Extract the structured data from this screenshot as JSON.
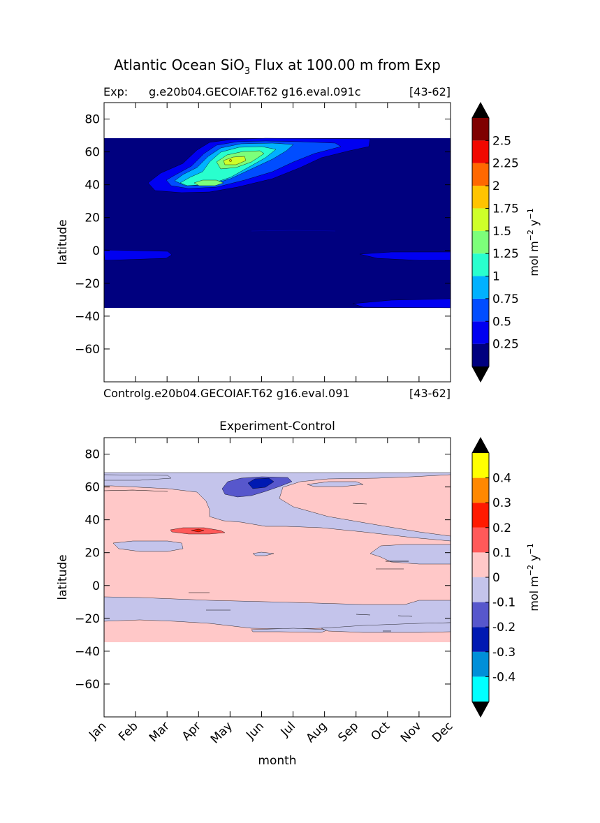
{
  "figure": {
    "title_main": "Atlantic Ocean SiO",
    "title_sub": "3",
    "title_rest": "Flux at 100.00 m from Exp"
  },
  "chart_data": [
    {
      "type": "heatmap",
      "title": "",
      "label_left": "Exp:",
      "label_center": "g.e20b04.GECOIAF.T62 g16.eval.091c",
      "label_right": "[43-62]",
      "label_bottom_left": "Controlg.e20b04.GECOIAF.T62 g16.eval.091",
      "label_bottom_right": "[43-62]",
      "xlabel": "",
      "ylabel": "latitude",
      "ylim": [
        -80,
        90
      ],
      "data_lat_range": [
        -34,
        69
      ],
      "yticks": [
        80,
        60,
        40,
        20,
        0,
        -20,
        -40,
        -60
      ],
      "ytick_labels": [
        "80",
        "60",
        "40",
        "20",
        "0",
        "−20",
        "−40",
        "−60"
      ],
      "colorbar": {
        "label_main": "mol m",
        "label_exp1": "−2",
        "label_mid": " y",
        "label_exp2": "−1",
        "tick_labels": [
          "0.25",
          "0.5",
          "0.75",
          "1",
          "1.25",
          "1.5",
          "1.75",
          "2",
          "2.25",
          "2.5"
        ],
        "colors": [
          "#00007f",
          "#0000f1",
          "#004dff",
          "#00b1ff",
          "#29ffce",
          "#7dff7a",
          "#ceff29",
          "#ffc400",
          "#ff6800",
          "#f10800",
          "#7f0000"
        ],
        "extend_color": "#000000"
      }
    },
    {
      "type": "heatmap",
      "title": "Experiment-Control",
      "xlabel": "month",
      "ylabel": "latitude",
      "ylim": [
        -80,
        90
      ],
      "data_lat_range": [
        -34,
        69
      ],
      "categories": [
        "Jan",
        "Feb",
        "Mar",
        "Apr",
        "May",
        "Jun",
        "Jul",
        "Aug",
        "Sep",
        "Oct",
        "Nov",
        "Dec"
      ],
      "yticks": [
        80,
        60,
        40,
        20,
        0,
        -20,
        -40,
        -60
      ],
      "ytick_labels": [
        "80",
        "60",
        "40",
        "20",
        "0",
        "−20",
        "−40",
        "−60"
      ],
      "colorbar": {
        "label_main": "mol m",
        "label_exp1": "−2",
        "label_mid": " y",
        "label_exp2": "−1",
        "tick_labels": [
          "-0.4",
          "-0.3",
          "-0.2",
          "-0.1",
          "0",
          "0.1",
          "0.2",
          "0.3",
          "0.4"
        ],
        "colors": [
          "#00ffff",
          "#008fd9",
          "#0019b2",
          "#5757cc",
          "#c4c4eb",
          "#ffc8c8",
          "#ff5959",
          "#ff1a00",
          "#ff8800",
          "#ffff00"
        ],
        "extend_color": "#000000"
      }
    }
  ]
}
